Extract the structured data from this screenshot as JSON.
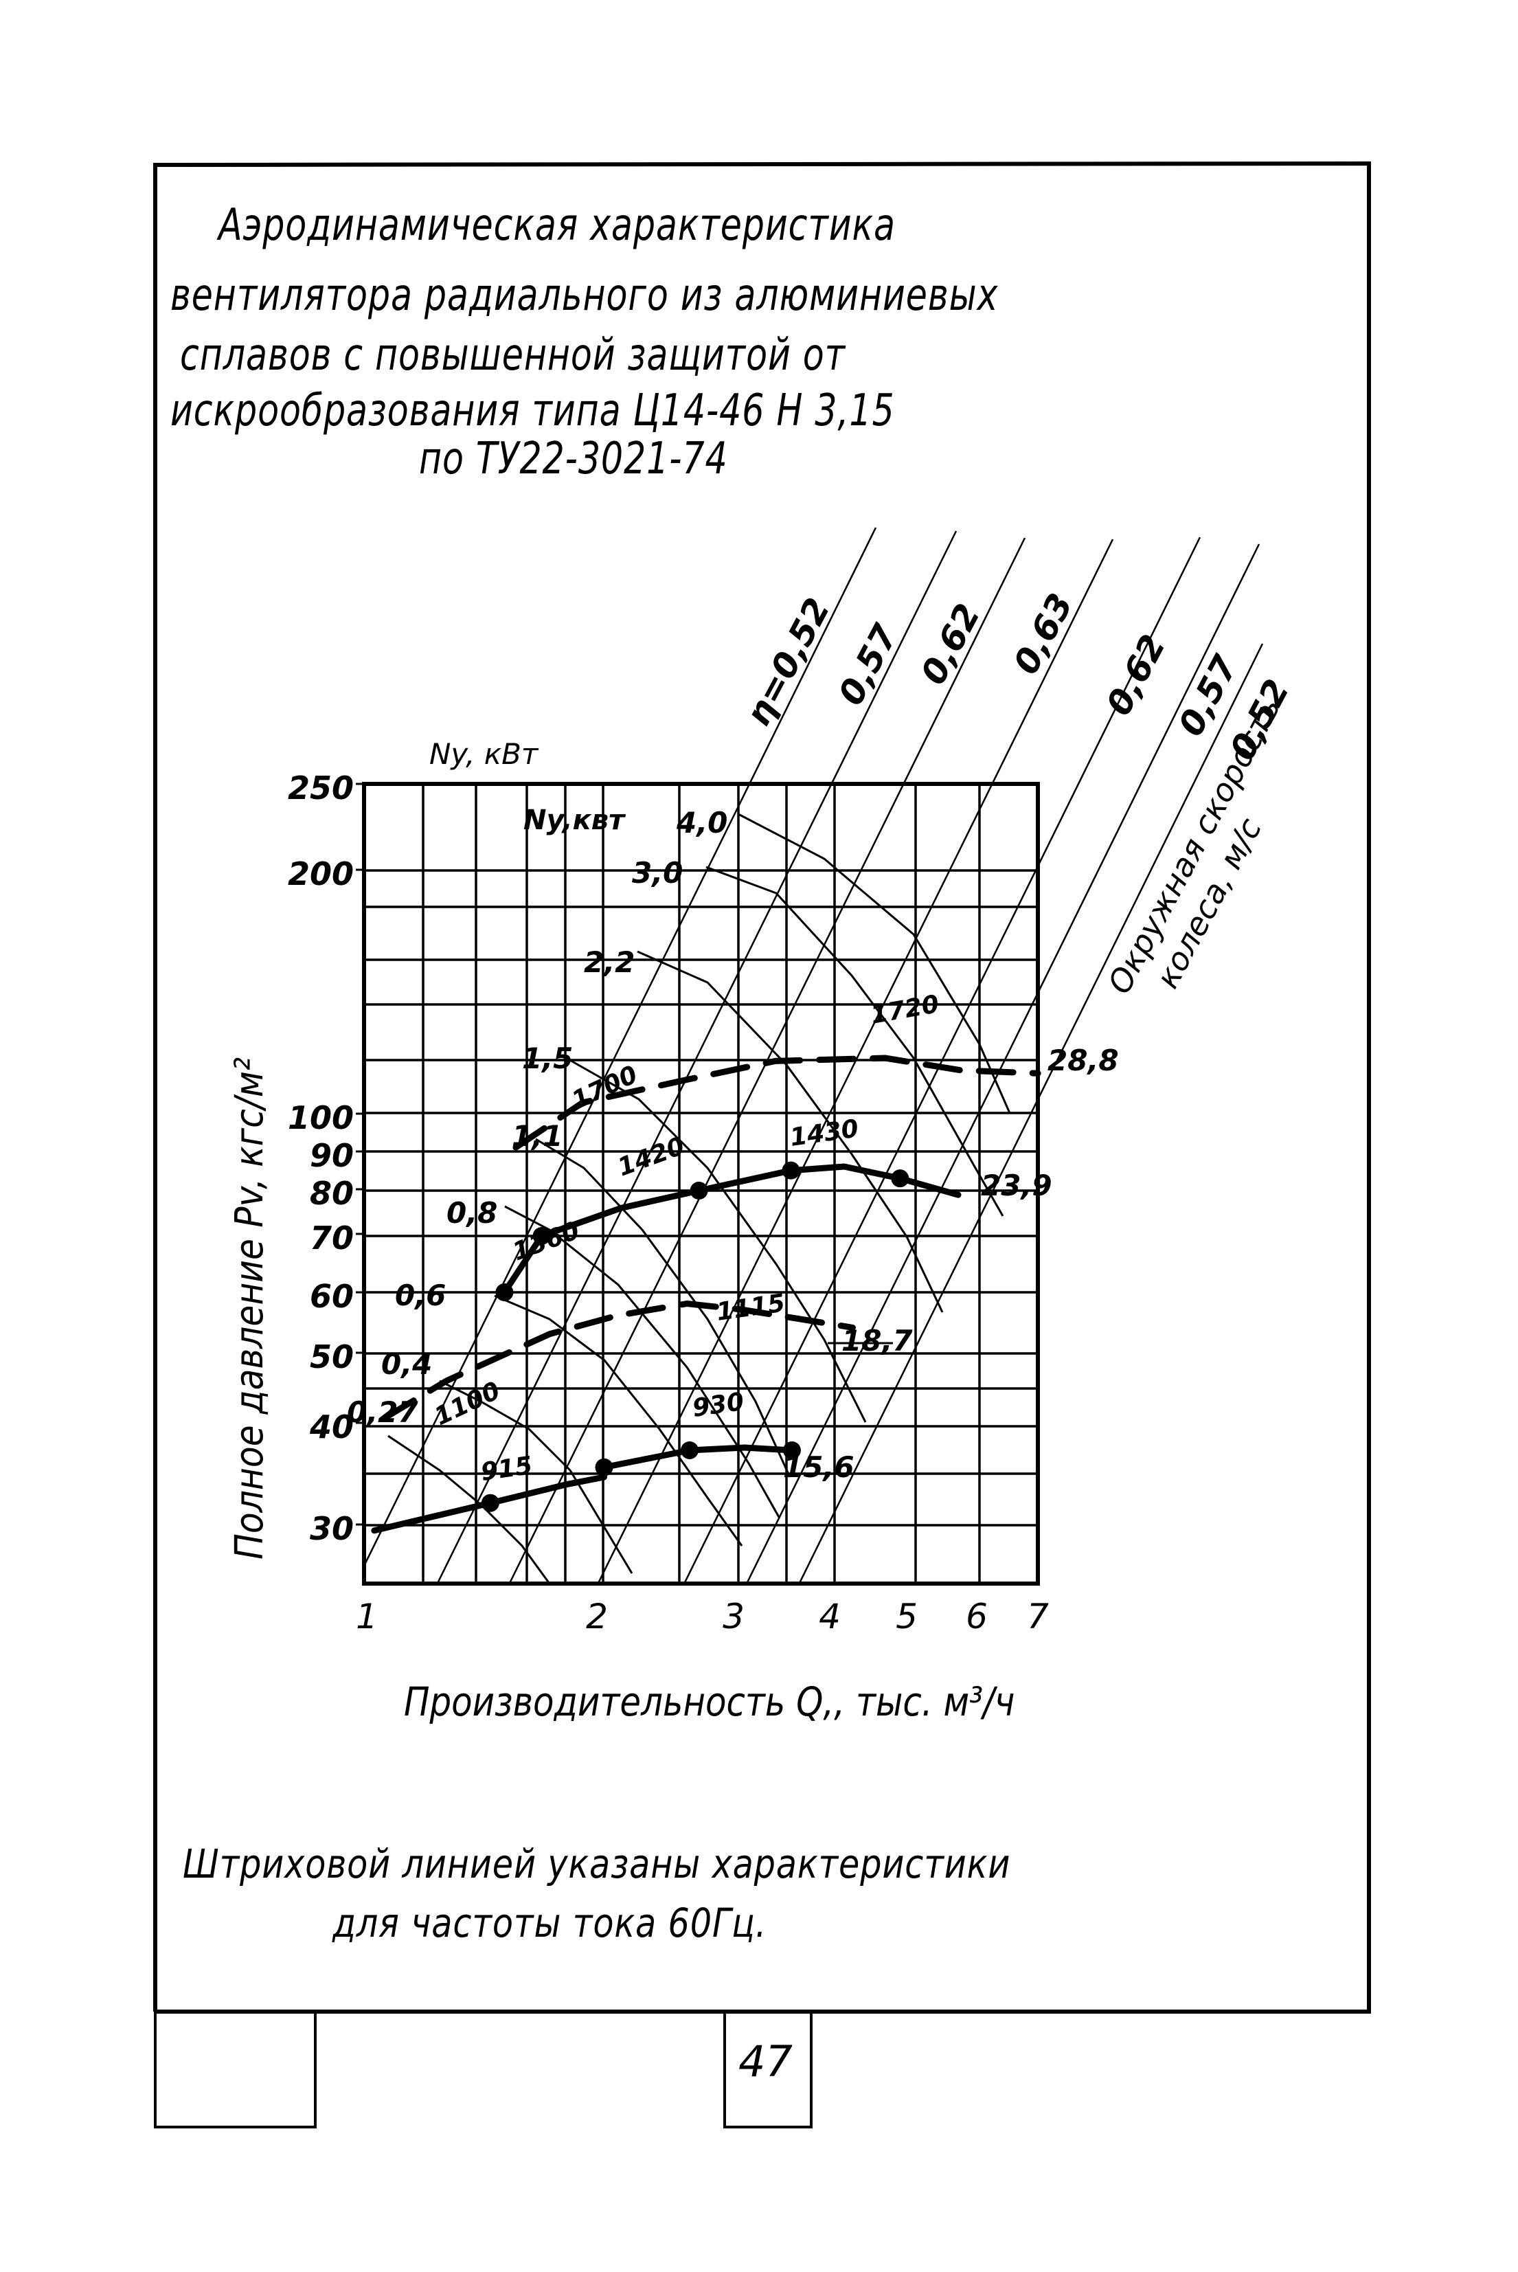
{
  "document": {
    "title_lines": [
      "Аэродинамическая характеристика",
      "вентилятора радиального из алюминиевых",
      "сплавов с повышенной защитой от",
      "искрообразования типа Ц14-46 Н 3,15",
      "по ТУ22-3021-74"
    ],
    "note_lines": [
      "Штриховой линией указаны характеристики",
      "для частоты тока 60Гц."
    ],
    "page_number": "47"
  },
  "chart_data": {
    "type": "line",
    "title": "Аэродинамическая характеристика вентилятора радиального из алюминиевых сплавов с повышенной защитой от искрообразования типа Ц14-46 Н 3,15 по ТУ22-3021-74",
    "xlabel": "Производительность Q,, тыс. м³/ч",
    "ylabel": "Полное давление Pv, кгс/м²",
    "x_scale": "log",
    "y_scale": "log",
    "xlim": [
      1,
      7
    ],
    "ylim": [
      25,
      250
    ],
    "x_ticks": [
      1,
      2,
      3,
      4,
      5,
      6,
      7
    ],
    "y_ticks": [
      250,
      200,
      100,
      90,
      80,
      70,
      60,
      50,
      40,
      30
    ],
    "y_tick_labels": [
      "250",
      "200",
      "100",
      "90",
      "80",
      "70",
      "60",
      "50",
      "40",
      "30"
    ],
    "x_tick_labels": [
      "1",
      "2",
      "3",
      "4",
      "5",
      "6",
      "7"
    ],
    "grid": true,
    "power_axis_label": "Ny, кВт",
    "power_axis_label_inner": "Ny,квт",
    "power_labels": [
      {
        "label": "4,0",
        "P": 210
      },
      {
        "label": "3,0",
        "P": 185
      },
      {
        "label": "2,2",
        "P": 150
      },
      {
        "label": "1,5",
        "P": 118
      },
      {
        "label": "1,1",
        "P": 99
      },
      {
        "label": "0,8",
        "P": 76
      },
      {
        "label": "0,6",
        "P": 60
      },
      {
        "label": "0,4",
        "P": 50
      },
      {
        "label": "0,27",
        "P": 37
      }
    ],
    "efficiency_labels": [
      "η=0,52",
      "0,57",
      "0,62",
      "0,63",
      "0,62",
      "0,57",
      "0,52"
    ],
    "tip_speed_label": "Окружная скорость колеса, м/с",
    "tip_speed_values": [
      "28,8",
      "23,9",
      "18,7",
      "15,6"
    ],
    "series": [
      {
        "name": "1430 об/мин (50 Гц)",
        "style": "solid",
        "labels": [
          "1360",
          "1420",
          "1430"
        ],
        "end_label": "23,9",
        "points": [
          [
            1.5,
            60
          ],
          [
            1.67,
            70
          ],
          [
            2.1,
            76
          ],
          [
            2.63,
            80
          ],
          [
            3.43,
            85
          ],
          [
            4.0,
            86
          ],
          [
            4.7,
            83
          ],
          [
            5.56,
            79
          ]
        ],
        "markers": [
          [
            1.5,
            60
          ],
          [
            1.67,
            70
          ],
          [
            2.63,
            80
          ],
          [
            3.43,
            85
          ],
          [
            4.7,
            83
          ]
        ]
      },
      {
        "name": "930 об/мин (50 Гц)",
        "style": "solid",
        "labels": [
          "915",
          "930"
        ],
        "end_label": "15,6",
        "points": [
          [
            1.03,
            29.5
          ],
          [
            1.44,
            32
          ],
          [
            1.8,
            33.8
          ],
          [
            2.0,
            34.5
          ],
          [
            2.0,
            35.5
          ],
          [
            2.56,
            37.3
          ],
          [
            3.0,
            37.6
          ],
          [
            3.44,
            37.3
          ]
        ],
        "markers": [
          [
            1.44,
            32
          ],
          [
            2.0,
            35.5
          ],
          [
            2.56,
            37.3
          ],
          [
            3.44,
            37.3
          ]
        ]
      },
      {
        "name": "1720 об/мин (60 Гц)",
        "style": "dashed",
        "labels": [
          "1700",
          "1720"
        ],
        "end_label": "28,8",
        "points": [
          [
            1.55,
            91
          ],
          [
            1.88,
            103
          ],
          [
            2.54,
            110
          ],
          [
            3.28,
            116
          ],
          [
            4.5,
            117
          ],
          [
            5.6,
            113
          ],
          [
            7.0,
            112
          ]
        ],
        "markers": []
      },
      {
        "name": "1115 об/мин (60 Гц)",
        "style": "dashed",
        "labels": [
          "1100",
          "1115"
        ],
        "end_label": "18,7",
        "points": [
          [
            1.06,
            41
          ],
          [
            1.27,
            46
          ],
          [
            1.71,
            53
          ],
          [
            2.08,
            56
          ],
          [
            2.54,
            58
          ],
          [
            2.97,
            57
          ],
          [
            4.1,
            54
          ]
        ],
        "markers": []
      }
    ],
    "legend_position": "none",
    "annotation": "Штриховой линией указаны характеристики для частоты тока 60Гц."
  }
}
